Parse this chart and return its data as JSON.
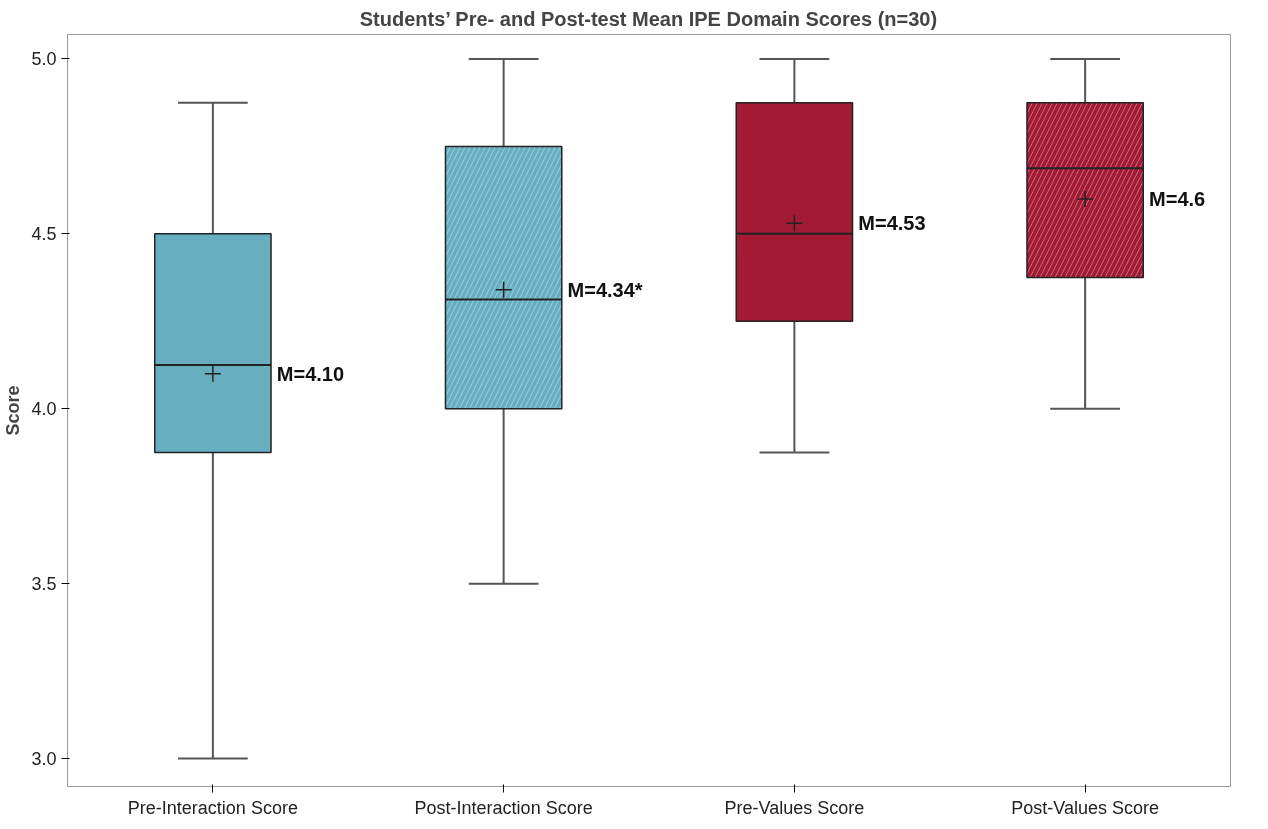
{
  "chart_data": {
    "type": "box",
    "title": "Students’ Pre- and Post-test Mean IPE Domain Scores (n=30)",
    "ylabel": "Score",
    "categories": [
      "Pre-Interaction Score",
      "Post-Interaction Score",
      "Pre-Values Score",
      "Post-Values Score"
    ],
    "colors": [
      "#67afc0",
      "#67afc0",
      "#a31a35",
      "#a31a35"
    ],
    "boxes": [
      {
        "low": 3.0,
        "q1": 3.875,
        "median": 4.125,
        "q3": 4.5,
        "high": 4.875,
        "mean": 4.1
      },
      {
        "low": 3.5,
        "q1": 4.0,
        "median": 4.3125,
        "q3": 4.75,
        "high": 5.0,
        "mean": 4.34
      },
      {
        "low": 3.875,
        "q1": 4.25,
        "median": 4.5,
        "q3": 4.875,
        "high": 5.0,
        "mean": 4.53
      },
      {
        "low": 4.0,
        "q1": 4.375,
        "median": 4.6875,
        "q3": 4.875,
        "high": 5.0,
        "mean": 4.6
      }
    ],
    "annotations": [
      "M=4.10",
      "M=4.34*",
      "M=4.53",
      "M=4.6"
    ],
    "marker": "cross",
    "ylim": [
      2.92,
      5.07
    ],
    "yticks": [
      {
        "value": 3,
        "label": "3.0"
      },
      {
        "value": 3.5,
        "label": "3.5"
      },
      {
        "value": 4,
        "label": "4.0"
      },
      {
        "value": 4.5,
        "label": "4.5"
      },
      {
        "value": 5,
        "label": "5.0"
      }
    ],
    "grid": false
  }
}
